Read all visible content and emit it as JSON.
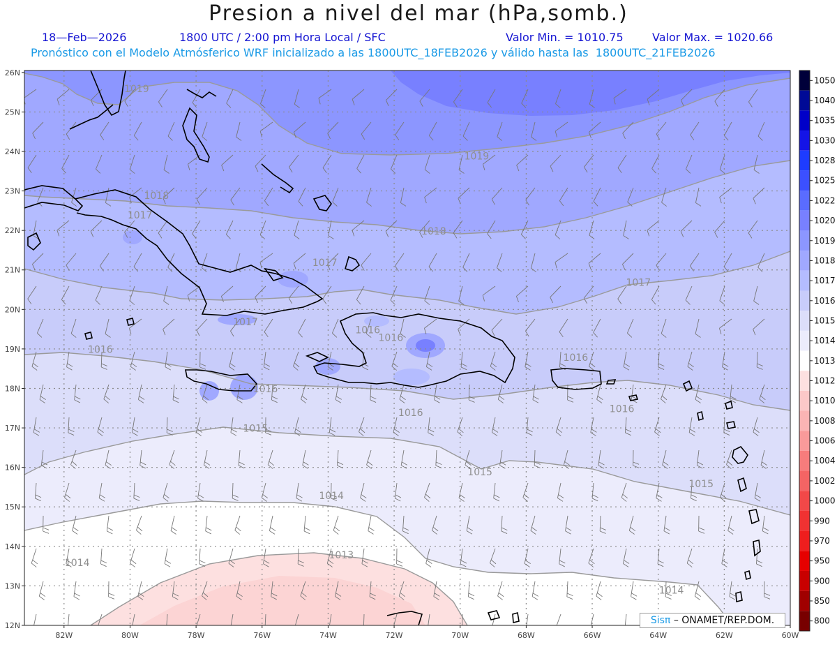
{
  "title": "Presion a nivel del mar (hPa,somb.)",
  "date": "18—Feb—2026",
  "time": "1800 UTC / 2:00 pm Hora Local / SFC",
  "min_label": "Valor Min. = 1010.75",
  "max_label": "Valor Max. = 1020.66",
  "forecast_line": "Pronóstico con el Modelo Atmósferico WRF inicializado a las 1800UTC_18FEB2026 y válido hasta las  1800UTC_21FEB2026",
  "credit": {
    "brand": "Sisπ",
    "rest": "– ONAMET/REP.DOM."
  },
  "lat_labels": [
    "26N",
    "25N",
    "24N",
    "23N",
    "22N",
    "21N",
    "20N",
    "19N",
    "18N",
    "17N",
    "16N",
    "15N",
    "14N",
    "13N",
    "12N"
  ],
  "lon_labels": [
    "82W",
    "80W",
    "78W",
    "76W",
    "74W",
    "72W",
    "70W",
    "68W",
    "66W",
    "64W",
    "62W",
    "60W"
  ],
  "contour_labels": [
    {
      "text": "1019",
      "lon": -79.8,
      "lat": 25.5
    },
    {
      "text": "1019",
      "lon": -69.5,
      "lat": 23.8
    },
    {
      "text": "1018",
      "lon": -79.2,
      "lat": 22.8
    },
    {
      "text": "1017",
      "lon": -79.7,
      "lat": 22.3
    },
    {
      "text": "1018",
      "lon": -70.8,
      "lat": 21.9
    },
    {
      "text": "1017",
      "lon": -74.1,
      "lat": 21.1
    },
    {
      "text": "1017",
      "lon": -64.6,
      "lat": 20.6
    },
    {
      "text": "1017",
      "lon": -76.5,
      "lat": 19.6
    },
    {
      "text": "1016",
      "lon": -72.8,
      "lat": 19.4
    },
    {
      "text": "1016",
      "lon": -72.1,
      "lat": 19.2
    },
    {
      "text": "1016",
      "lon": -80.9,
      "lat": 18.9
    },
    {
      "text": "1016",
      "lon": -66.5,
      "lat": 18.7
    },
    {
      "text": "1016",
      "lon": -75.9,
      "lat": 17.9
    },
    {
      "text": "1016",
      "lon": -71.5,
      "lat": 17.3
    },
    {
      "text": "1016",
      "lon": -65.1,
      "lat": 17.4
    },
    {
      "text": "1015",
      "lon": -76.2,
      "lat": 16.9
    },
    {
      "text": "1015",
      "lon": -69.4,
      "lat": 15.8
    },
    {
      "text": "1015",
      "lon": -62.7,
      "lat": 15.5
    },
    {
      "text": "1014",
      "lon": -73.9,
      "lat": 15.2
    },
    {
      "text": "1014",
      "lon": -81.6,
      "lat": 13.5
    },
    {
      "text": "1013",
      "lon": -73.6,
      "lat": 13.7
    },
    {
      "text": "1014",
      "lon": -63.6,
      "lat": 12.8
    }
  ],
  "colorbar": {
    "levels": [
      "1050",
      "1040",
      "1035",
      "1030",
      "1028",
      "1025",
      "1022",
      "1020",
      "1019",
      "1018",
      "1017",
      "1016",
      "1015",
      "1014",
      "1013",
      "1012",
      "1010",
      "1008",
      "1006",
      "1004",
      "1002",
      "1000",
      "990",
      "970",
      "950",
      "900",
      "850",
      "800"
    ],
    "colors": [
      "#00003a",
      "#000a96",
      "#0000c8",
      "#1414e6",
      "#1e3cff",
      "#3c50ff",
      "#5a6cff",
      "#7880ff",
      "#8c96ff",
      "#a0a8ff",
      "#b4bcff",
      "#c8ccfa",
      "#dcdefa",
      "#ececfc",
      "#ffffff",
      "#fde0e0",
      "#fcc8c8",
      "#fbb4b4",
      "#f99a9a",
      "#f77c7c",
      "#f46464",
      "#f24848",
      "#f03232",
      "#ee1e1e",
      "#e60000",
      "#c80000",
      "#a00000",
      "#780000"
    ]
  }
}
